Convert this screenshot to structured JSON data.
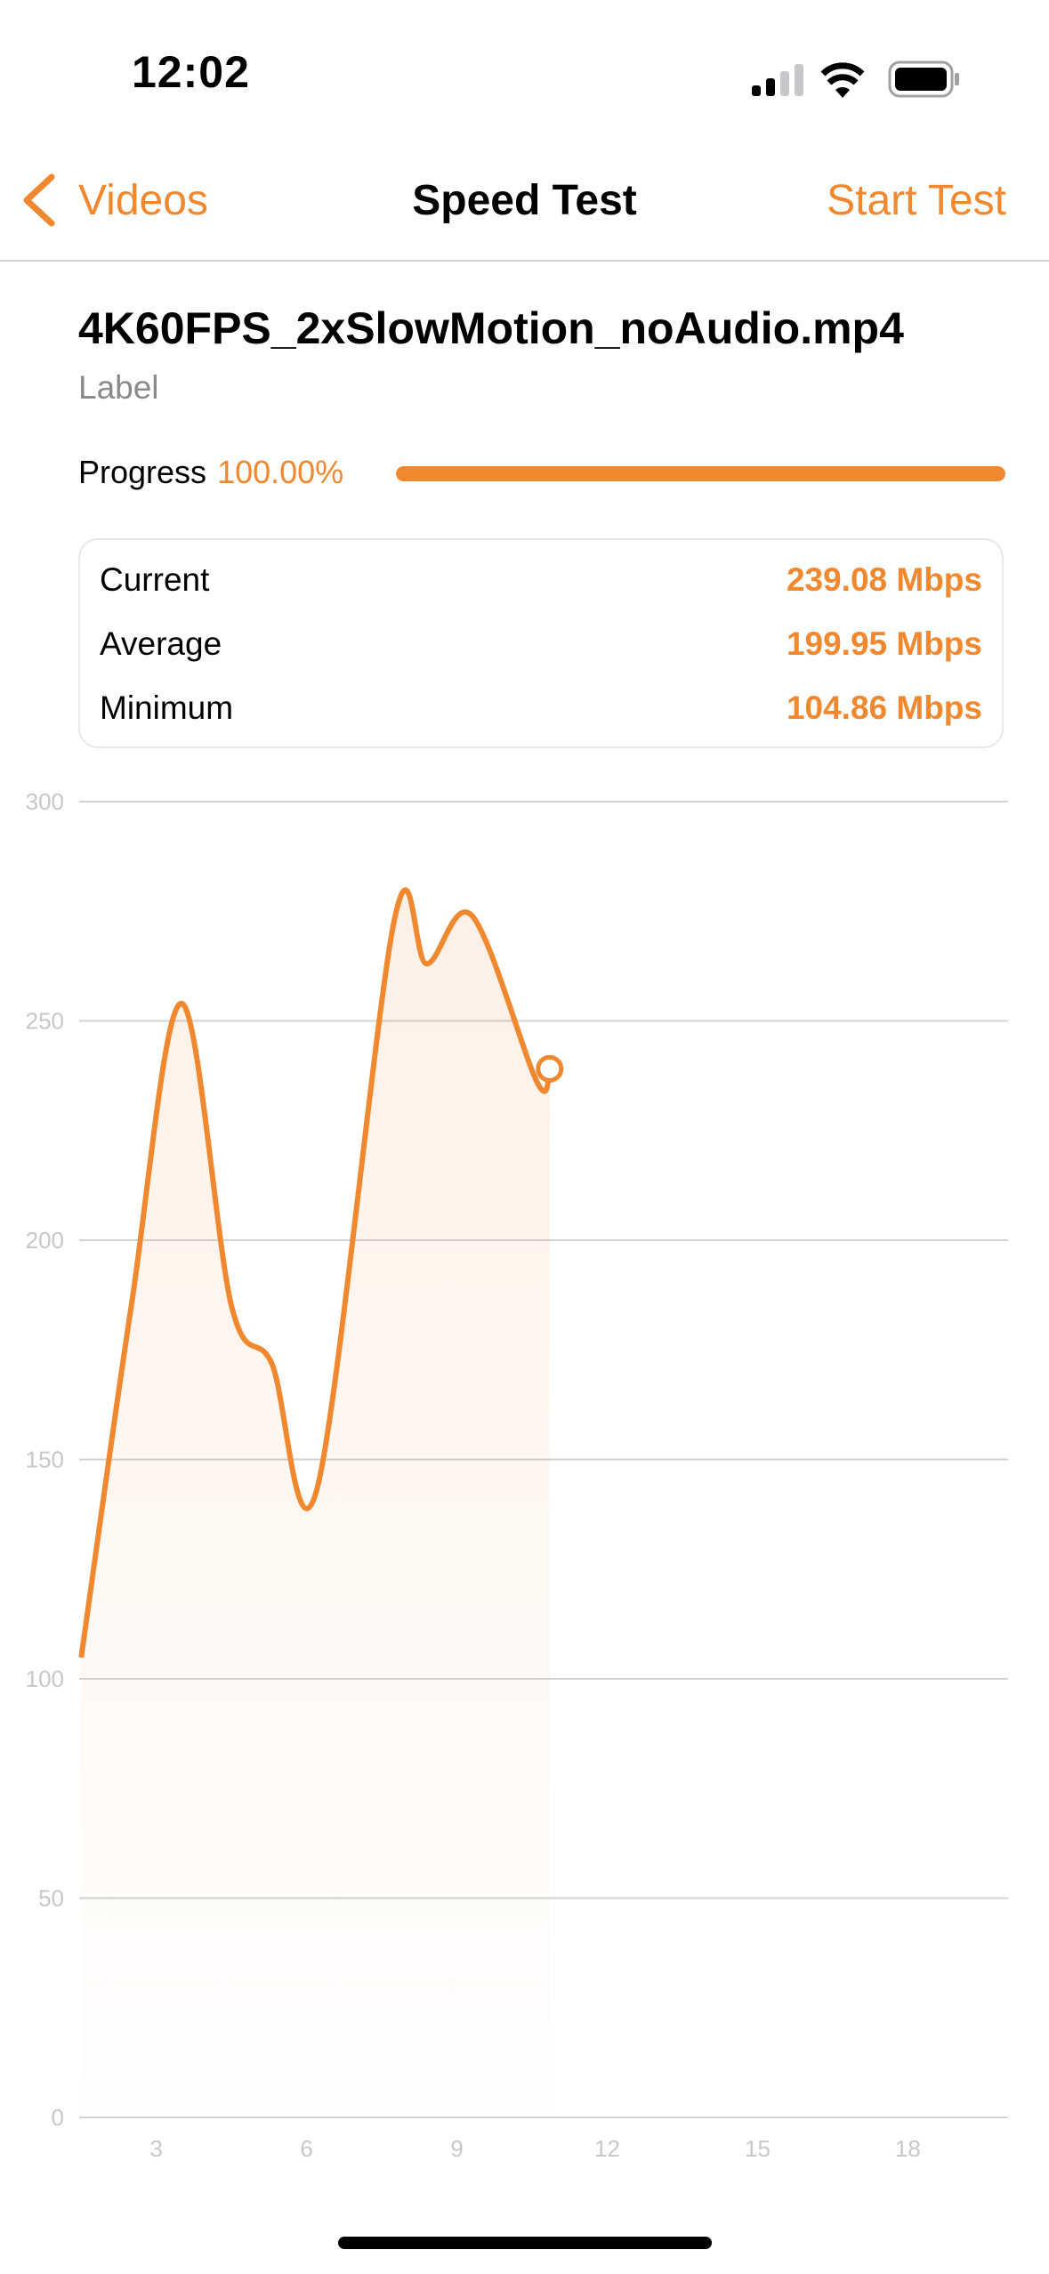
{
  "status_bar": {
    "time": "12:02",
    "icons": [
      "cellular-signal-icon",
      "wifi-icon",
      "battery-icon"
    ]
  },
  "nav": {
    "back_label": "Videos",
    "title": "Speed Test",
    "action_label": "Start Test"
  },
  "video": {
    "filename": "4K60FPS_2xSlowMotion_noAudio.mp4",
    "label": "Label"
  },
  "progress": {
    "label": "Progress",
    "value_text": "100.00%",
    "fraction": 1.0
  },
  "stats": [
    {
      "label": "Current",
      "value": "239.08 Mbps"
    },
    {
      "label": "Average",
      "value": "199.95 Mbps"
    },
    {
      "label": "Minimum",
      "value": "104.86 Mbps"
    }
  ],
  "colors": {
    "accent": "#f0882f",
    "grid": "#d1d1d6",
    "tick": "#c7c7cc"
  },
  "chart_data": {
    "type": "area",
    "x": [
      1.5,
      2.5,
      3.5,
      4.5,
      5.3,
      6.2,
      7.75,
      8.4,
      9.3,
      10.6,
      10.85
    ],
    "values": [
      104.86,
      185,
      254,
      185,
      172,
      143,
      273,
      263,
      274,
      236,
      239.08
    ],
    "xlim": [
      1.46,
      20
    ],
    "ylim": [
      0,
      300
    ],
    "x_ticks": [
      3,
      6,
      9,
      12,
      15,
      18
    ],
    "y_ticks": [
      0,
      50,
      100,
      150,
      200,
      250,
      300
    ],
    "grid": "horizontal",
    "last_point_marker": true
  }
}
